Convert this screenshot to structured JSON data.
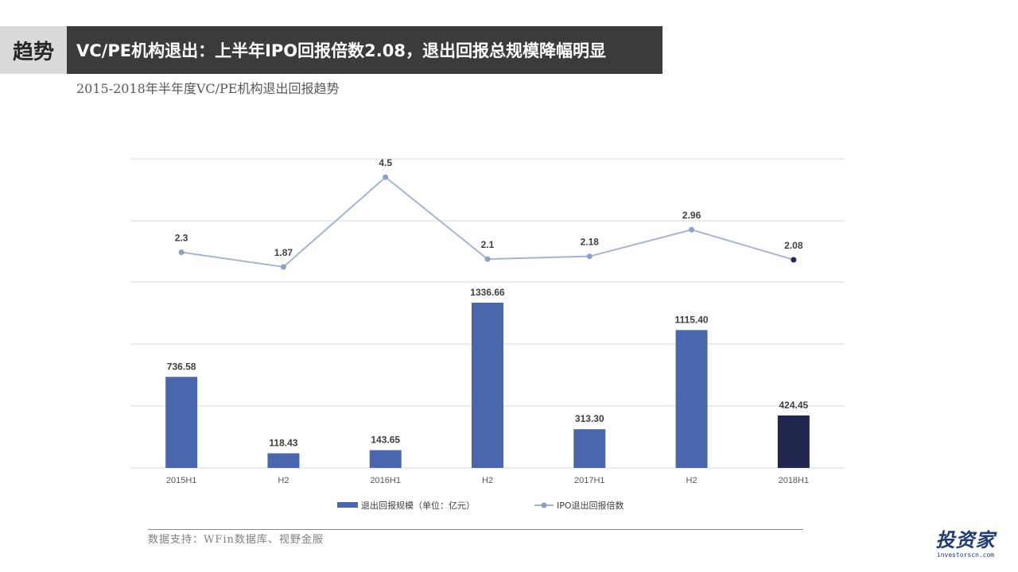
{
  "header": {
    "tag": "趋势",
    "title": "VC/PE机构退出：上半年IPO回报倍数2.08，退出回报总规模降幅明显",
    "subtitle": "2015-2018年半年度VC/PE机构退出回报趋势"
  },
  "colors": {
    "bar": "#4a67ad",
    "bar_highlight": "#21264f",
    "line": "#a6b4d4",
    "point": "#8d9fcb",
    "point_highlight": "#1f2a5c",
    "grid": "#d9d9d9"
  },
  "chart_data": {
    "type": "bar",
    "categories": [
      "2015H1",
      "H2",
      "2016H1",
      "H2",
      "2017H1",
      "H2",
      "2018H1"
    ],
    "series": [
      {
        "name": "退出回报规模（单位：亿元）",
        "type": "bar",
        "values": [
          736.58,
          118.43,
          143.65,
          1336.66,
          313.3,
          1115.4,
          424.45
        ],
        "labels": [
          "736.58",
          "118.43",
          "143.65",
          "1336.66",
          "313.30",
          "1115.40",
          "424.45"
        ]
      },
      {
        "name": "IPO退出回报倍数",
        "type": "line",
        "values": [
          2.3,
          1.87,
          4.5,
          2.1,
          2.18,
          2.96,
          2.08
        ],
        "labels": [
          "2.3",
          "1.87",
          "4.5",
          "2.1",
          "2.18",
          "2.96",
          "2.08"
        ]
      }
    ],
    "highlight_index": 6,
    "legend_position": "bottom",
    "grid": true
  },
  "footer": {
    "source": "数据支持：WFin数据库、视野金服",
    "logo_text": "投资家",
    "logo_sub": "investorscn.com"
  }
}
